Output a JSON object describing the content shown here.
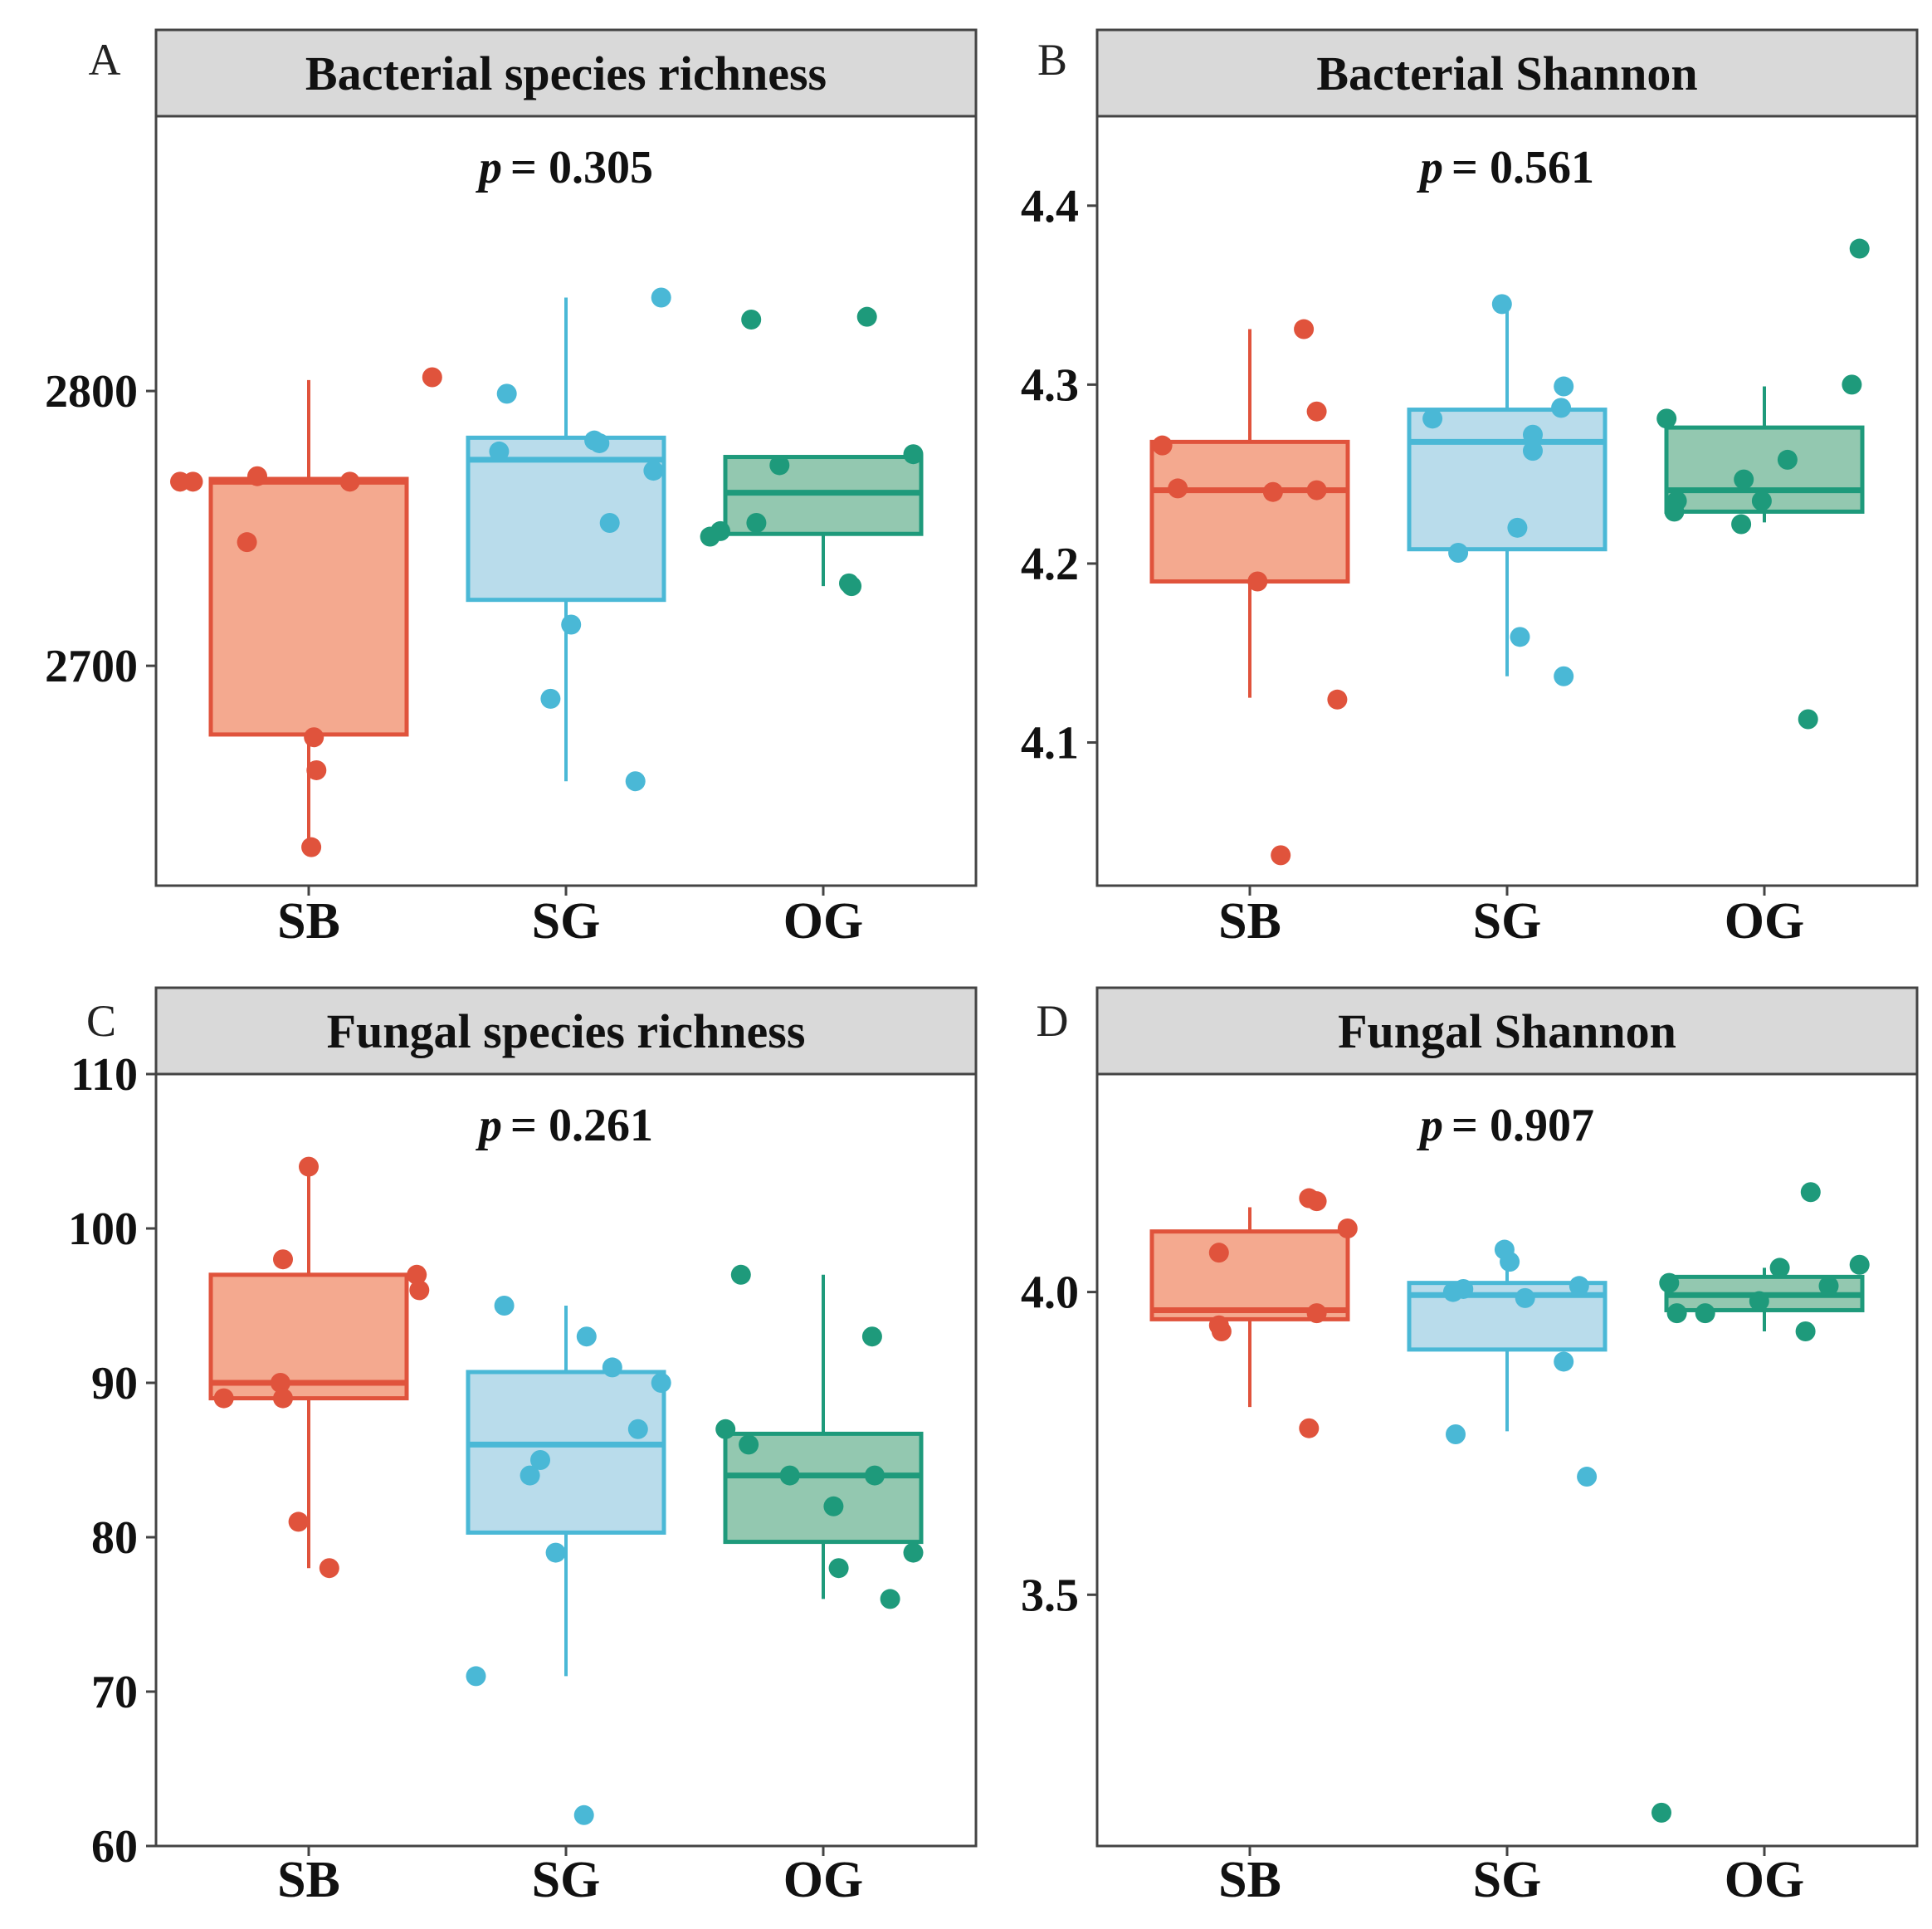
{
  "chart_data": [
    {
      "panel_label": "A",
      "title": "Bacterial species richness",
      "type": "box-jitter",
      "p_label": "p",
      "p_value_text": "= 0.305",
      "ylim": [
        2620,
        2900
      ],
      "yticks": [
        2700,
        2800
      ],
      "ytick_labels": [
        "2700",
        "2800"
      ],
      "categories": [
        "SB",
        "SG",
        "OG"
      ],
      "boxes": [
        {
          "group": "SB",
          "q1": 2675,
          "median": 2767,
          "q3": 2768,
          "whisker_low": 2634,
          "whisker_high": 2804
        },
        {
          "group": "SG",
          "q1": 2724,
          "median": 2775,
          "q3": 2783,
          "whisker_low": 2658,
          "whisker_high": 2834
        },
        {
          "group": "OG",
          "q1": 2748,
          "median": 2763,
          "q3": 2776,
          "whisker_low": 2729,
          "whisker_high": 2776
        }
      ],
      "points": [
        {
          "group": "SB",
          "values": [
            2767,
            2767,
            2769,
            2767,
            2745,
            2674,
            2662,
            2634,
            2805
          ],
          "offsets": [
            -0.5,
            -0.45,
            -0.2,
            0.16,
            -0.24,
            0.02,
            0.03,
            0.01,
            0.48
          ]
        },
        {
          "group": "SG",
          "values": [
            2799,
            2778,
            2782,
            2781,
            2771,
            2752,
            2715,
            2688,
            2658,
            2834
          ],
          "offsets": [
            -0.23,
            -0.26,
            0.11,
            0.13,
            0.34,
            0.17,
            0.02,
            -0.06,
            0.27,
            0.37
          ]
        },
        {
          "group": "OG",
          "values": [
            2826,
            2827,
            2777,
            2773,
            2752,
            2749,
            2747,
            2730,
            2729
          ],
          "offsets": [
            -0.28,
            0.17,
            0.35,
            -0.17,
            -0.26,
            -0.4,
            -0.44,
            0.1,
            0.11
          ]
        }
      ]
    },
    {
      "panel_label": "B",
      "title": "Bacterial Shannon",
      "type": "box-jitter",
      "p_label": "p",
      "p_value_text": "= 0.561",
      "ylim": [
        4.02,
        4.45
      ],
      "yticks": [
        4.1,
        4.2,
        4.3,
        4.4
      ],
      "ytick_labels": [
        "4.1",
        "4.2",
        "4.3",
        "4.4"
      ],
      "categories": [
        "SB",
        "SG",
        "OG"
      ],
      "boxes": [
        {
          "group": "SB",
          "q1": 4.19,
          "median": 4.241,
          "q3": 4.268,
          "whisker_low": 4.125,
          "whisker_high": 4.331
        },
        {
          "group": "SG",
          "q1": 4.208,
          "median": 4.268,
          "q3": 4.286,
          "whisker_low": 4.137,
          "whisker_high": 4.345
        },
        {
          "group": "OG",
          "q1": 4.229,
          "median": 4.241,
          "q3": 4.276,
          "whisker_low": 4.223,
          "whisker_high": 4.299
        }
      ],
      "points": [
        {
          "group": "SB",
          "values": [
            4.266,
            4.242,
            4.24,
            4.241,
            4.19,
            4.331,
            4.285,
            4.124,
            4.037
          ],
          "offsets": [
            -0.34,
            -0.28,
            0.09,
            0.26,
            0.03,
            0.21,
            0.26,
            0.34,
            0.12
          ]
        },
        {
          "group": "SG",
          "values": [
            4.281,
            4.206,
            4.345,
            4.299,
            4.287,
            4.272,
            4.263,
            4.22,
            4.159,
            4.137
          ],
          "offsets": [
            -0.29,
            -0.19,
            -0.02,
            0.22,
            0.21,
            0.1,
            0.1,
            0.04,
            0.05,
            0.22
          ]
        },
        {
          "group": "OG",
          "values": [
            4.281,
            4.235,
            4.229,
            4.247,
            4.222,
            4.235,
            4.258,
            4.3,
            4.376,
            4.113
          ],
          "offsets": [
            -0.38,
            -0.34,
            -0.35,
            -0.08,
            -0.09,
            -0.01,
            0.09,
            0.34,
            0.37,
            0.17
          ]
        }
      ]
    },
    {
      "panel_label": "C",
      "title": "Fungal species richness",
      "type": "box-jitter",
      "p_label": "p",
      "p_value_text": "= 0.261",
      "ylim": [
        60,
        110
      ],
      "yticks": [
        60,
        70,
        80,
        90,
        100,
        110
      ],
      "ytick_labels": [
        "60",
        "70",
        "80",
        "90",
        "100",
        "110"
      ],
      "categories": [
        "SB",
        "SG",
        "OG"
      ],
      "boxes": [
        {
          "group": "SB",
          "q1": 89,
          "median": 90,
          "q3": 97,
          "whisker_low": 78,
          "whisker_high": 104
        },
        {
          "group": "SG",
          "q1": 80.3,
          "median": 86,
          "q3": 90.7,
          "whisker_low": 71,
          "whisker_high": 95
        },
        {
          "group": "OG",
          "q1": 79.7,
          "median": 84,
          "q3": 86.7,
          "whisker_low": 76,
          "whisker_high": 97
        }
      ],
      "points": [
        {
          "group": "SB",
          "values": [
            104,
            98,
            97,
            96,
            90,
            89,
            89,
            81,
            78
          ],
          "offsets": [
            0.0,
            -0.1,
            0.42,
            0.43,
            -0.11,
            -0.33,
            -0.1,
            -0.04,
            0.08
          ]
        },
        {
          "group": "SG",
          "values": [
            95,
            93,
            91,
            90,
            87,
            85,
            84,
            79,
            71,
            62
          ],
          "offsets": [
            -0.24,
            0.08,
            0.18,
            0.37,
            0.28,
            -0.1,
            -0.14,
            -0.04,
            -0.35,
            0.07
          ]
        },
        {
          "group": "OG",
          "values": [
            97,
            93,
            87,
            86,
            84,
            84,
            82,
            79,
            78,
            76
          ],
          "offsets": [
            -0.32,
            0.19,
            -0.38,
            -0.29,
            -0.13,
            0.2,
            0.04,
            0.35,
            0.06,
            0.26
          ]
        }
      ]
    },
    {
      "panel_label": "D",
      "title": "Fungal Shannon",
      "type": "box-jitter",
      "p_label": "p",
      "p_value_text": "= 0.907",
      "ylim": [
        3.085,
        4.36
      ],
      "yticks": [
        3.5,
        4.0
      ],
      "ytick_labels": [
        "3.5",
        "4.0"
      ],
      "categories": [
        "SB",
        "SG",
        "OG"
      ],
      "boxes": [
        {
          "group": "SB",
          "q1": 3.955,
          "median": 3.97,
          "q3": 4.1,
          "whisker_low": 3.81,
          "whisker_high": 4.14
        },
        {
          "group": "SG",
          "q1": 3.905,
          "median": 3.995,
          "q3": 4.015,
          "whisker_low": 3.77,
          "whisker_high": 4.07
        },
        {
          "group": "OG",
          "q1": 3.97,
          "median": 3.995,
          "q3": 4.025,
          "whisker_low": 3.935,
          "whisker_high": 4.04
        }
      ],
      "points": [
        {
          "group": "SB",
          "values": [
            4.155,
            4.15,
            4.105,
            4.065,
            3.965,
            3.935,
            3.945,
            3.775
          ],
          "offsets": [
            0.23,
            0.26,
            0.38,
            -0.12,
            0.26,
            -0.11,
            -0.12,
            0.23
          ]
        },
        {
          "group": "SG",
          "values": [
            4.07,
            4.05,
            4.01,
            4.005,
            4.0,
            3.99,
            3.885,
            3.765,
            3.695
          ],
          "offsets": [
            -0.01,
            0.01,
            0.28,
            -0.17,
            -0.21,
            0.07,
            0.22,
            -0.2,
            0.31
          ]
        },
        {
          "group": "OG",
          "values": [
            4.165,
            4.045,
            4.04,
            4.015,
            4.01,
            3.985,
            3.965,
            3.965,
            3.935,
            3.14
          ],
          "offsets": [
            0.18,
            0.37,
            0.06,
            -0.37,
            0.25,
            -0.02,
            -0.34,
            -0.23,
            0.16,
            -0.4
          ]
        }
      ]
    }
  ],
  "colors": {
    "SB": {
      "stroke": "#e0533c",
      "fill": "#f4a98f",
      "point": "#e0533c"
    },
    "SG": {
      "stroke": "#4ab8d6",
      "fill": "#b9dceb",
      "point": "#4ab8d6"
    },
    "OG": {
      "stroke": "#1e9a7b",
      "fill": "#93c8b0",
      "point": "#1e9a7b"
    },
    "strip_fill": "#d9d9d9",
    "panel_border": "#444444"
  }
}
